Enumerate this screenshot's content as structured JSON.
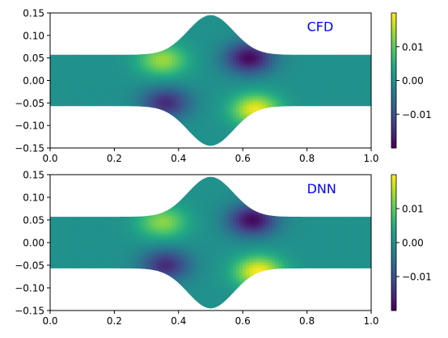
{
  "chart_data": [
    {
      "type": "heatmap",
      "title": "",
      "annotation": "CFD",
      "annotation_color": "#0000ff",
      "xlabel": "",
      "ylabel": "",
      "xlim": [
        0.0,
        1.0
      ],
      "ylim": [
        -0.15,
        0.15
      ],
      "x_ticks": [
        0.0,
        0.2,
        0.4,
        0.6,
        0.8,
        1.0
      ],
      "x_tick_labels": [
        "0.0",
        "0.2",
        "0.4",
        "0.6",
        "0.8",
        "1.0"
      ],
      "y_ticks": [
        0.15,
        0.1,
        0.05,
        0.0,
        -0.05,
        -0.1,
        -0.15
      ],
      "y_tick_labels": [
        "0.15",
        "0.10",
        "0.05",
        "0.00",
        "−0.05",
        "−0.10",
        "−0.15"
      ],
      "colormap": "viridis",
      "colorbar": {
        "range": [
          -0.02,
          0.02
        ],
        "ticks": [
          0.01,
          0.0,
          -0.01
        ],
        "tick_labels": [
          "0.01",
          "0.00",
          "−0.01"
        ]
      },
      "domain": {
        "half_width_at_ends": 0.057,
        "half_width_at_center": 0.145,
        "bulge_center_x": 0.5
      },
      "extrema": [
        {
          "x": 0.35,
          "y": 0.045,
          "value": 0.014
        },
        {
          "x": 0.36,
          "y": -0.05,
          "value": -0.015
        },
        {
          "x": 0.62,
          "y": 0.05,
          "value": -0.019
        },
        {
          "x": 0.64,
          "y": -0.065,
          "value": 0.019
        }
      ]
    },
    {
      "type": "heatmap",
      "title": "",
      "annotation": "DNN",
      "annotation_color": "#0000ff",
      "xlabel": "",
      "ylabel": "",
      "xlim": [
        0.0,
        1.0
      ],
      "ylim": [
        -0.15,
        0.15
      ],
      "x_ticks": [
        0.0,
        0.2,
        0.4,
        0.6,
        0.8,
        1.0
      ],
      "x_tick_labels": [
        "0.0",
        "0.2",
        "0.4",
        "0.6",
        "0.8",
        "1.0"
      ],
      "y_ticks": [
        0.15,
        0.1,
        0.05,
        0.0,
        -0.05,
        -0.1,
        -0.15
      ],
      "y_tick_labels": [
        "0.15",
        "0.10",
        "0.05",
        "0.00",
        "−0.05",
        "−0.10",
        "−0.15"
      ],
      "colormap": "viridis",
      "colorbar": {
        "range": [
          -0.02,
          0.02
        ],
        "ticks": [
          0.01,
          0.0,
          -0.01
        ],
        "tick_labels": [
          "0.01",
          "0.00",
          "−0.01"
        ]
      },
      "domain": {
        "half_width_at_ends": 0.057,
        "half_width_at_center": 0.145,
        "bulge_center_x": 0.5
      },
      "extrema": [
        {
          "x": 0.35,
          "y": 0.045,
          "value": 0.013
        },
        {
          "x": 0.36,
          "y": -0.05,
          "value": -0.015
        },
        {
          "x": 0.63,
          "y": 0.05,
          "value": -0.019
        },
        {
          "x": 0.65,
          "y": -0.065,
          "value": 0.02
        }
      ]
    }
  ]
}
